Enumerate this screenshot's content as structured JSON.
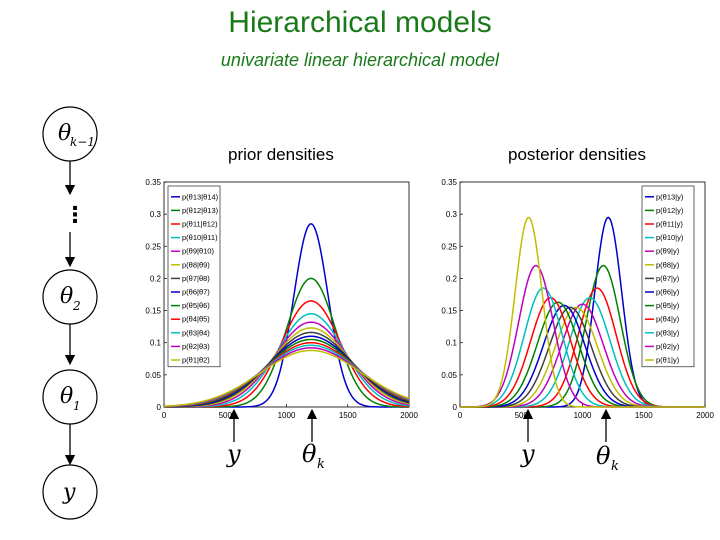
{
  "header": {
    "title": "Hierarchical models",
    "subtitle": "univariate linear hierarchical model"
  },
  "diagram": {
    "nodes": [
      "θ",
      "θ",
      "θ",
      "y"
    ],
    "node_subscripts": [
      "k−1",
      "2",
      "1",
      ""
    ],
    "ellipsis": "⋮"
  },
  "panels": {
    "prior_title": "prior densities",
    "posterior_title": "posterior densities"
  },
  "annotations": {
    "y_symbol": "y",
    "theta_symbol": "θ",
    "theta_subscript": "k"
  },
  "colors": {
    "title": "#1a7a1a",
    "series": [
      "#0000cc",
      "#008000",
      "#ff0000",
      "#00bfbf",
      "#bf00bf",
      "#bfbf00",
      "#404040",
      "#0000cc",
      "#008000",
      "#ff0000",
      "#00bfbf",
      "#bf00bf",
      "#bfbf00"
    ]
  },
  "chart_data": [
    {
      "type": "line",
      "title": "prior densities",
      "xlim": [
        0,
        2000
      ],
      "ylim": [
        0,
        0.35
      ],
      "xticks": [
        "0",
        "500",
        "1000",
        "1500",
        "2000"
      ],
      "yticks": [
        "0",
        "0.05",
        "0.1",
        "0.15",
        "0.2",
        "0.25",
        "0.3",
        "0.35"
      ],
      "legend_position": "top-left",
      "series": [
        {
          "name": "p(θ13|θ14)",
          "mean": 1200,
          "sigma": 140,
          "peak": 0.285
        },
        {
          "name": "p(θ12|θ13)",
          "mean": 1200,
          "sigma": 200,
          "peak": 0.2
        },
        {
          "name": "p(θ11|θ12)",
          "mean": 1200,
          "sigma": 240,
          "peak": 0.165
        },
        {
          "name": "p(θ10|θ11)",
          "mean": 1200,
          "sigma": 270,
          "peak": 0.145
        },
        {
          "name": "p(θ9|θ10)",
          "mean": 1200,
          "sigma": 295,
          "peak": 0.132
        },
        {
          "name": "p(θ8|θ9)",
          "mean": 1200,
          "sigma": 315,
          "peak": 0.123
        },
        {
          "name": "p(θ7|θ8)",
          "mean": 1200,
          "sigma": 332,
          "peak": 0.116
        },
        {
          "name": "p(θ6|θ7)",
          "mean": 1200,
          "sigma": 348,
          "peak": 0.11
        },
        {
          "name": "p(θ5|θ6)",
          "mean": 1200,
          "sigma": 362,
          "peak": 0.105
        },
        {
          "name": "p(θ4|θ5)",
          "mean": 1200,
          "sigma": 375,
          "peak": 0.1
        },
        {
          "name": "p(θ3|θ4)",
          "mean": 1200,
          "sigma": 388,
          "peak": 0.096
        },
        {
          "name": "p(θ2|θ3)",
          "mean": 1200,
          "sigma": 400,
          "peak": 0.092
        },
        {
          "name": "p(θ1|θ2)",
          "mean": 1200,
          "sigma": 412,
          "peak": 0.088
        }
      ]
    },
    {
      "type": "line",
      "title": "posterior densities",
      "xlim": [
        0,
        2000
      ],
      "ylim": [
        0,
        0.35
      ],
      "xticks": [
        "0",
        "500",
        "1000",
        "1500",
        "2000"
      ],
      "yticks": [
        "0",
        "0.05",
        "0.1",
        "0.15",
        "0.2",
        "0.25",
        "0.3",
        "0.35"
      ],
      "legend_position": "top-right",
      "series": [
        {
          "name": "p(θ13|y)",
          "mean": 1210,
          "sigma": 110,
          "peak": 0.295
        },
        {
          "name": "p(θ12|y)",
          "mean": 1170,
          "sigma": 140,
          "peak": 0.22
        },
        {
          "name": "p(θ11|y)",
          "mean": 1120,
          "sigma": 155,
          "peak": 0.185
        },
        {
          "name": "p(θ10|y)",
          "mean": 1060,
          "sigma": 165,
          "peak": 0.17
        },
        {
          "name": "p(θ9|y)",
          "mean": 1000,
          "sigma": 170,
          "peak": 0.16
        },
        {
          "name": "p(θ8|y)",
          "mean": 950,
          "sigma": 172,
          "peak": 0.155
        },
        {
          "name": "p(θ7|y)",
          "mean": 900,
          "sigma": 172,
          "peak": 0.155
        },
        {
          "name": "p(θ6|y)",
          "mean": 850,
          "sigma": 170,
          "peak": 0.158
        },
        {
          "name": "p(θ5|y)",
          "mean": 800,
          "sigma": 168,
          "peak": 0.163
        },
        {
          "name": "p(θ4|y)",
          "mean": 740,
          "sigma": 163,
          "peak": 0.17
        },
        {
          "name": "p(θ3|y)",
          "mean": 680,
          "sigma": 155,
          "peak": 0.185
        },
        {
          "name": "p(θ2|y)",
          "mean": 620,
          "sigma": 140,
          "peak": 0.22
        },
        {
          "name": "p(θ1|y)",
          "mean": 560,
          "sigma": 110,
          "peak": 0.295
        }
      ]
    }
  ]
}
